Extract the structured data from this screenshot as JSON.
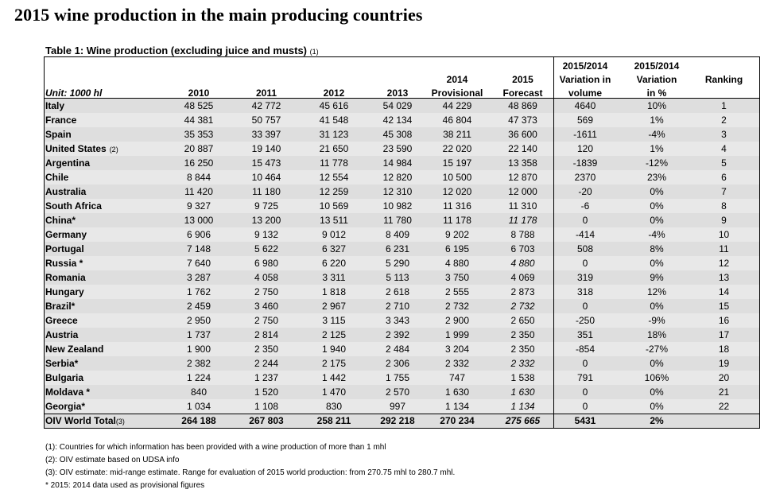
{
  "title": "2015 wine production in the main producing countries",
  "table_caption": "Table 1: Wine production (excluding juice and musts)",
  "table_caption_note": "(1)",
  "headers": {
    "unit": "Unit: 1000 hl",
    "y2010": "2010",
    "y2011": "2011",
    "y2012": "2012",
    "y2013": "2013",
    "y2014_top": "2014",
    "y2014_bottom": "Provisional",
    "y2015_top": "2015",
    "y2015_bottom": "Forecast",
    "var_vol_1": "2015/2014",
    "var_vol_2": "Variation in",
    "var_vol_3": "volume",
    "var_pct_1": "2015/2014",
    "var_pct_2": "Variation",
    "var_pct_3": "in %",
    "ranking": "Ranking"
  },
  "rows": [
    {
      "country": "Italy",
      "note": "",
      "v2010": "48 525",
      "v2011": "42 772",
      "v2012": "45 616",
      "v2013": "54 029",
      "v2014": "44 229",
      "v2015": "48 869",
      "italic": false,
      "var": "4640",
      "pct": "10%",
      "rank": "1"
    },
    {
      "country": "France",
      "note": "",
      "v2010": "44 381",
      "v2011": "50 757",
      "v2012": "41 548",
      "v2013": "42 134",
      "v2014": "46 804",
      "v2015": "47 373",
      "italic": false,
      "var": "569",
      "pct": "1%",
      "rank": "2"
    },
    {
      "country": "Spain",
      "note": "",
      "v2010": "35 353",
      "v2011": "33 397",
      "v2012": "31 123",
      "v2013": "45 308",
      "v2014": "38 211",
      "v2015": "36 600",
      "italic": false,
      "var": "-1611",
      "pct": "-4%",
      "rank": "3"
    },
    {
      "country": "United States",
      "note": "(2)",
      "v2010": "20 887",
      "v2011": "19 140",
      "v2012": "21 650",
      "v2013": "23 590",
      "v2014": "22 020",
      "v2015": "22 140",
      "italic": false,
      "var": "120",
      "pct": "1%",
      "rank": "4"
    },
    {
      "country": "Argentina",
      "note": "",
      "v2010": "16 250",
      "v2011": "15 473",
      "v2012": "11 778",
      "v2013": "14 984",
      "v2014": "15 197",
      "v2015": "13 358",
      "italic": false,
      "var": "-1839",
      "pct": "-12%",
      "rank": "5"
    },
    {
      "country": "Chile",
      "note": "",
      "v2010": "8 844",
      "v2011": "10 464",
      "v2012": "12 554",
      "v2013": "12 820",
      "v2014": "10 500",
      "v2015": "12 870",
      "italic": false,
      "var": "2370",
      "pct": "23%",
      "rank": "6"
    },
    {
      "country": "Australia",
      "note": "",
      "v2010": "11 420",
      "v2011": "11 180",
      "v2012": "12 259",
      "v2013": "12 310",
      "v2014": "12 020",
      "v2015": "12 000",
      "italic": false,
      "var": "-20",
      "pct": "0%",
      "rank": "7"
    },
    {
      "country": "South Africa",
      "note": "",
      "v2010": "9 327",
      "v2011": "9 725",
      "v2012": "10 569",
      "v2013": "10 982",
      "v2014": "11 316",
      "v2015": "11 310",
      "italic": false,
      "var": "-6",
      "pct": "0%",
      "rank": "8"
    },
    {
      "country": "China*",
      "note": "",
      "v2010": "13 000",
      "v2011": "13 200",
      "v2012": "13 511",
      "v2013": "11 780",
      "v2014": "11 178",
      "v2015": "11 178",
      "italic": true,
      "var": "0",
      "pct": "0%",
      "rank": "9"
    },
    {
      "country": "Germany",
      "note": "",
      "v2010": "6 906",
      "v2011": "9 132",
      "v2012": "9 012",
      "v2013": "8 409",
      "v2014": "9 202",
      "v2015": "8 788",
      "italic": false,
      "var": "-414",
      "pct": "-4%",
      "rank": "10"
    },
    {
      "country": "Portugal",
      "note": "",
      "v2010": "7 148",
      "v2011": "5 622",
      "v2012": "6 327",
      "v2013": "6 231",
      "v2014": "6 195",
      "v2015": "6 703",
      "italic": false,
      "var": "508",
      "pct": "8%",
      "rank": "11"
    },
    {
      "country": "Russia *",
      "note": "",
      "v2010": "7 640",
      "v2011": "6 980",
      "v2012": "6 220",
      "v2013": "5 290",
      "v2014": "4 880",
      "v2015": "4 880",
      "italic": true,
      "var": "0",
      "pct": "0%",
      "rank": "12"
    },
    {
      "country": "Romania",
      "note": "",
      "v2010": "3 287",
      "v2011": "4 058",
      "v2012": "3 311",
      "v2013": "5 113",
      "v2014": "3 750",
      "v2015": "4 069",
      "italic": false,
      "var": "319",
      "pct": "9%",
      "rank": "13"
    },
    {
      "country": "Hungary",
      "note": "",
      "v2010": "1 762",
      "v2011": "2 750",
      "v2012": "1 818",
      "v2013": "2 618",
      "v2014": "2 555",
      "v2015": "2 873",
      "italic": false,
      "var": "318",
      "pct": "12%",
      "rank": "14"
    },
    {
      "country": "Brazil*",
      "note": "",
      "v2010": "2 459",
      "v2011": "3 460",
      "v2012": "2 967",
      "v2013": "2 710",
      "v2014": "2 732",
      "v2015": "2 732",
      "italic": true,
      "var": "0",
      "pct": "0%",
      "rank": "15"
    },
    {
      "country": "Greece",
      "note": "",
      "v2010": "2 950",
      "v2011": "2 750",
      "v2012": "3 115",
      "v2013": "3 343",
      "v2014": "2 900",
      "v2015": "2 650",
      "italic": false,
      "var": "-250",
      "pct": "-9%",
      "rank": "16"
    },
    {
      "country": "Austria",
      "note": "",
      "v2010": "1 737",
      "v2011": "2 814",
      "v2012": "2 125",
      "v2013": "2 392",
      "v2014": "1 999",
      "v2015": "2 350",
      "italic": false,
      "var": "351",
      "pct": "18%",
      "rank": "17"
    },
    {
      "country": "New Zealand",
      "note": "",
      "v2010": "1 900",
      "v2011": "2 350",
      "v2012": "1 940",
      "v2013": "2 484",
      "v2014": "3 204",
      "v2015": "2 350",
      "italic": false,
      "var": "-854",
      "pct": "-27%",
      "rank": "18"
    },
    {
      "country": "Serbia*",
      "note": "",
      "v2010": "2 382",
      "v2011": "2 244",
      "v2012": "2 175",
      "v2013": "2 306",
      "v2014": "2 332",
      "v2015": "2 332",
      "italic": true,
      "var": "0",
      "pct": "0%",
      "rank": "19"
    },
    {
      "country": "Bulgaria",
      "note": "",
      "v2010": "1 224",
      "v2011": "1 237",
      "v2012": "1 442",
      "v2013": "1 755",
      "v2014": "747",
      "v2015": "1 538",
      "italic": false,
      "var": "791",
      "pct": "106%",
      "rank": "20"
    },
    {
      "country": "Moldava *",
      "note": "",
      "v2010": "840",
      "v2011": "1 520",
      "v2012": "1 470",
      "v2013": "2 570",
      "v2014": "1 630",
      "v2015": "1 630",
      "italic": true,
      "var": "0",
      "pct": "0%",
      "rank": "21"
    },
    {
      "country": "Georgia*",
      "note": "",
      "v2010": "1 034",
      "v2011": "1 108",
      "v2012": "830",
      "v2013": "997",
      "v2014": "1 134",
      "v2015": "1 134",
      "italic": true,
      "var": "0",
      "pct": "0%",
      "rank": "22"
    }
  ],
  "total": {
    "label": "OIV World Total",
    "note": "(3)",
    "v2010": "264 188",
    "v2011": "267 803",
    "v2012": "258 211",
    "v2013": "292 218",
    "v2014": "270 234",
    "v2015": "275 665",
    "var": "5431",
    "pct": "2%",
    "rank": ""
  },
  "footnotes": [
    "(1): Countries for which information has been provided with a wine production of more than 1 mhl",
    "(2): OIV estimate based on UDSA info",
    "(3): OIV estimate: mid-range estimate. Range for evaluation of 2015 world production: from 270.75 mhl to 280.7 mhl.",
    "* 2015: 2014 data used as provisional figures"
  ],
  "colors": {
    "shade": "#dedede",
    "text": "#000000",
    "rule": "#000000"
  }
}
